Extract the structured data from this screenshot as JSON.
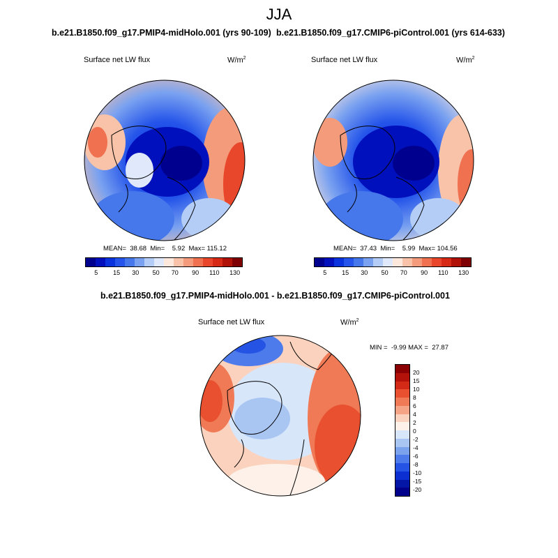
{
  "season": "JJA",
  "panels": [
    {
      "case_title": "b.e21.B1850.f09_g17.PMIP4-midHolo.001 (yrs 90-109)",
      "label": "Surface net LW flux",
      "units": "W/m",
      "units_sup": "2",
      "stats": "MEAN=  38.68  Min=    5.92  Max= 115.12",
      "colorbar_labels": [
        "5",
        "15",
        "30",
        "50",
        "70",
        "90",
        "110",
        "130"
      ]
    },
    {
      "case_title": "b.e21.B1850.f09_g17.CMIP6-piControl.001 (yrs 614-633)",
      "label": "Surface net LW flux",
      "units": "W/m",
      "units_sup": "2",
      "stats": "MEAN=  37.43  Min=    5.99  Max= 104.56",
      "colorbar_labels": [
        "5",
        "15",
        "30",
        "50",
        "70",
        "90",
        "110",
        "130"
      ]
    }
  ],
  "diff": {
    "title": "b.e21.B1850.f09_g17.PMIP4-midHolo.001 - b.e21.B1850.f09_g17.CMIP6-piControl.001",
    "label": "Surface net LW flux",
    "units": "W/m",
    "units_sup": "2",
    "stats": "MIN =  -9.99 MAX =  27.87",
    "colorbar_labels": [
      "20",
      "15",
      "10",
      "8",
      "6",
      "4",
      "2",
      "0",
      "-2",
      "-4",
      "-6",
      "-8",
      "-10",
      "-15",
      "-20"
    ]
  },
  "colors": {
    "abs_scale": [
      "#00008f",
      "#0010bd",
      "#0a33dd",
      "#2454ea",
      "#4678ec",
      "#7aa2f0",
      "#b3cdf7",
      "#dfe9fb",
      "#fde8dd",
      "#f8c3a8",
      "#f39b7a",
      "#ef7150",
      "#e9472b",
      "#d72a16",
      "#b01208",
      "#7f0000"
    ],
    "diff_scale": [
      "#8b0000",
      "#b2120a",
      "#d32a17",
      "#e8502f",
      "#f07a55",
      "#f5a585",
      "#fbd2bd",
      "#fdf1ea",
      "#d8e6fa",
      "#a9c6f3",
      "#7ba2ed",
      "#4d7beb",
      "#2553e4",
      "#0b2fd0",
      "#0416a6",
      "#00008a"
    ]
  }
}
